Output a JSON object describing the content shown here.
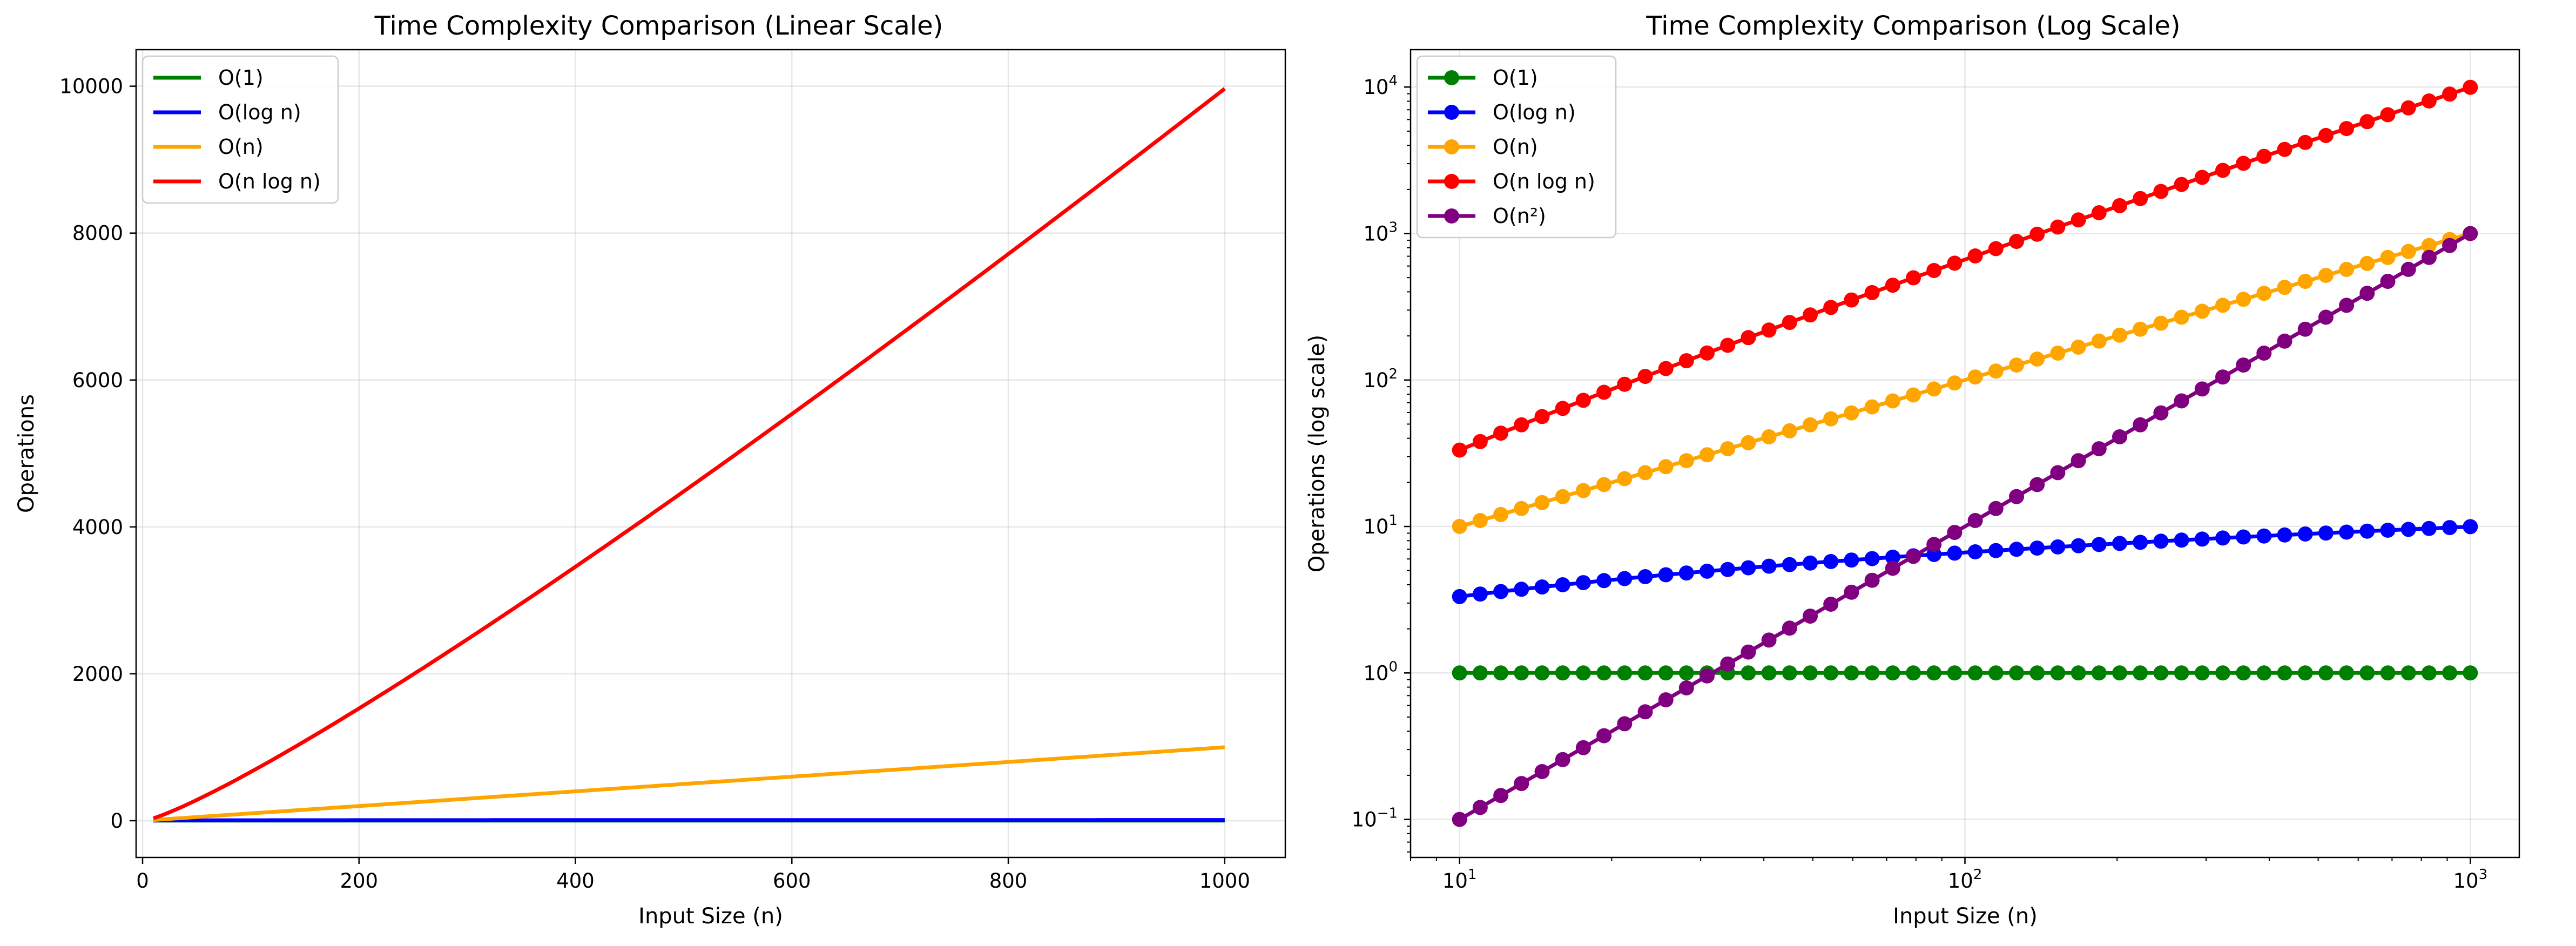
{
  "figure": {
    "charts": [
      {
        "id": "linear",
        "type": "line",
        "title": "Time Complexity Comparison (Linear Scale)",
        "xlabel": "Input Size (n)",
        "ylabel": "Operations",
        "xscale": "linear",
        "yscale": "linear",
        "xlim": [
          -6,
          1056
        ],
        "ylim": [
          -500,
          10497
        ],
        "xticks": [
          0,
          200,
          400,
          600,
          800,
          1000
        ],
        "xtick_labels": [
          "0",
          "200",
          "400",
          "600",
          "800",
          "1000"
        ],
        "yticks": [
          0,
          2000,
          4000,
          6000,
          8000,
          10000
        ],
        "ytick_labels": [
          "0",
          "2000",
          "4000",
          "6000",
          "8000",
          "10000"
        ],
        "grid": true,
        "legend_position": "upper left",
        "markers": false,
        "series": [
          {
            "name": "O(1)",
            "color": "#008000",
            "formula": "1"
          },
          {
            "name": "O(log n)",
            "color": "#0000ff",
            "formula": "log n"
          },
          {
            "name": "O(n)",
            "color": "#ffa500",
            "formula": "n"
          },
          {
            "name": "O(n log n)",
            "color": "#ff0000",
            "formula": "n log n"
          }
        ],
        "x": [
          10,
          1000
        ]
      },
      {
        "id": "log",
        "type": "line",
        "title": "Time Complexity Comparison (Log Scale)",
        "xlabel": "Input Size (n)",
        "ylabel": "Operations (log scale)",
        "xscale": "log",
        "yscale": "log",
        "xlim": [
          8,
          1250
        ],
        "ylim": [
          0.055,
          18000
        ],
        "xticks": [
          10,
          100,
          1000
        ],
        "xtick_labels": [
          {
            "base": "10",
            "exp": "1"
          },
          {
            "base": "10",
            "exp": "2"
          },
          {
            "base": "10",
            "exp": "3"
          }
        ],
        "yticks": [
          0.1,
          1,
          10,
          100,
          1000,
          10000
        ],
        "ytick_labels": [
          {
            "base": "10",
            "exp": "−1"
          },
          {
            "base": "10",
            "exp": "0"
          },
          {
            "base": "10",
            "exp": "1"
          },
          {
            "base": "10",
            "exp": "2"
          },
          {
            "base": "10",
            "exp": "3"
          },
          {
            "base": "10",
            "exp": "4"
          }
        ],
        "grid": true,
        "legend_position": "upper left",
        "markers": true,
        "series": [
          {
            "name": "O(1)",
            "color": "#008000",
            "formula": "1"
          },
          {
            "name": "O(log n)",
            "color": "#0000ff",
            "formula": "log n"
          },
          {
            "name": "O(n)",
            "color": "#ffa500",
            "formula": "n"
          },
          {
            "name": "O(n log n)",
            "color": "#ff0000",
            "formula": "n log n"
          },
          {
            "name": "O(n²)",
            "color": "#800080",
            "formula": "n^2 / 1000"
          }
        ],
        "x": [
          10,
          1000
        ],
        "points": 50
      }
    ]
  },
  "chart_data": [
    {
      "type": "line",
      "title": "Time Complexity Comparison (Linear Scale)",
      "xlabel": "Input Size (n)",
      "ylabel": "Operations",
      "xlim": [
        -6,
        1056
      ],
      "ylim": [
        -500,
        10497
      ],
      "x": [
        10,
        100,
        200,
        300,
        400,
        500,
        600,
        700,
        800,
        900,
        1000
      ],
      "series": [
        {
          "name": "O(1)",
          "values": [
            1,
            1,
            1,
            1,
            1,
            1,
            1,
            1,
            1,
            1,
            1
          ]
        },
        {
          "name": "O(log n)",
          "values": [
            3.3,
            6.6,
            7.6,
            8.2,
            8.6,
            9.0,
            9.2,
            9.5,
            9.6,
            9.8,
            10.0
          ]
        },
        {
          "name": "O(n)",
          "values": [
            10,
            100,
            200,
            300,
            400,
            500,
            600,
            700,
            800,
            900,
            1000
          ]
        },
        {
          "name": "O(n log n)",
          "values": [
            33,
            664,
            1529,
            2469,
            3458,
            4483,
            5537,
            6616,
            7715,
            8832,
            9966
          ]
        }
      ],
      "grid": true,
      "legend": "upper left"
    },
    {
      "type": "line",
      "title": "Time Complexity Comparison (Log Scale)",
      "xlabel": "Input Size (n)",
      "ylabel": "Operations (log scale)",
      "xscale": "log",
      "yscale": "log",
      "xlim": [
        8,
        1250
      ],
      "ylim": [
        0.055,
        18000
      ],
      "x": [
        10,
        20,
        50,
        100,
        200,
        500,
        1000
      ],
      "series": [
        {
          "name": "O(1)",
          "values": [
            1,
            1,
            1,
            1,
            1,
            1,
            1
          ]
        },
        {
          "name": "O(log n)",
          "values": [
            3.32,
            4.32,
            5.64,
            6.64,
            7.64,
            8.97,
            9.97
          ]
        },
        {
          "name": "O(n)",
          "values": [
            10,
            20,
            50,
            100,
            200,
            500,
            1000
          ]
        },
        {
          "name": "O(n log n)",
          "values": [
            33.2,
            86.4,
            282,
            664,
            1529,
            4483,
            9966
          ]
        },
        {
          "name": "O(n²)",
          "values": [
            0.1,
            0.4,
            2.5,
            10,
            40,
            250,
            1000
          ]
        }
      ],
      "grid": true,
      "legend": "upper left"
    }
  ]
}
